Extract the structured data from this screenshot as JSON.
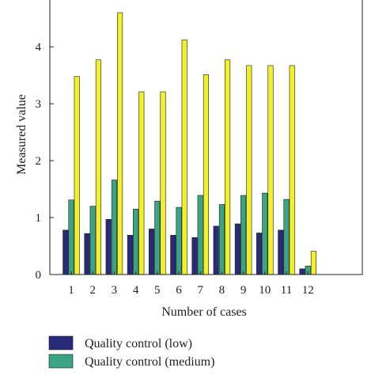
{
  "chart_data": {
    "type": "bar",
    "title": "",
    "xlabel": "Number of cases",
    "ylabel": "Measured value",
    "categories": [
      "1",
      "2",
      "3",
      "4",
      "5",
      "6",
      "7",
      "8",
      "9",
      "10",
      "11",
      "12"
    ],
    "ylim": [
      0,
      4.85
    ],
    "yticks": [
      "0",
      "1",
      "2",
      "3",
      "4"
    ],
    "grid": false,
    "legend_position": "bottom",
    "series": [
      {
        "name": "Quality control (low)",
        "color": "#2a2a7a",
        "values": [
          0.78,
          0.72,
          0.97,
          0.69,
          0.8,
          0.69,
          0.65,
          0.85,
          0.89,
          0.73,
          0.78,
          0.1
        ]
      },
      {
        "name": "Quality control (medium)",
        "color": "#3aa585",
        "values": [
          1.31,
          1.2,
          1.66,
          1.15,
          1.29,
          1.18,
          1.39,
          1.23,
          1.39,
          1.43,
          1.32,
          0.15
        ]
      },
      {
        "name": "",
        "color": "#f2f02a",
        "values": [
          3.48,
          3.77,
          4.6,
          3.21,
          3.21,
          4.12,
          3.51,
          3.77,
          3.67,
          3.67,
          3.67,
          0.41
        ]
      }
    ]
  }
}
